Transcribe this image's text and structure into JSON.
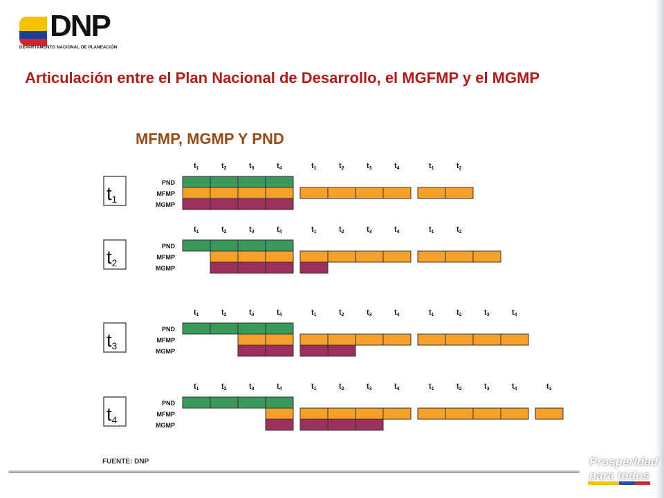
{
  "header": {
    "logo_text": "DNP",
    "logo_subtitle": "DEPARTAMENTO NACIONAL DE PLANEACIÓN",
    "flag_colors": [
      "#f5c400",
      "#1d3f96",
      "#d2242a"
    ]
  },
  "title": "Articulación entre el Plan Nacional de Desarrollo, el MGFMP y el MGMP",
  "subtitle": "MFMP, MGMP Y PND",
  "colors": {
    "PND": "#3a9a5b",
    "MFMP": "#f5a02a",
    "MGMP": "#9b2f5e",
    "title": "#b31b1b",
    "subtitle": "#9a4a14"
  },
  "row_labels": [
    "PND",
    "MFMP",
    "MGMP"
  ],
  "panels": [
    {
      "label": "t1",
      "label_base": "t",
      "label_sub": "1",
      "ticks": [
        "t1",
        "t2",
        "t3",
        "t4",
        "t1",
        "t2",
        "t3",
        "t4",
        "t1",
        "t2"
      ],
      "rows": {
        "PND": [
          0,
          1,
          2,
          3
        ],
        "MFMP": [
          0,
          1,
          2,
          3,
          4,
          5,
          6,
          7,
          8,
          9
        ],
        "MGMP": [
          0,
          1,
          2,
          3
        ]
      }
    },
    {
      "label": "t2",
      "label_base": "t",
      "label_sub": "2",
      "ticks": [
        "t1",
        "t2",
        "t3",
        "t4",
        "t1",
        "t2",
        "t3",
        "t4",
        "t1",
        "t2"
      ],
      "rows": {
        "PND": [
          0,
          1,
          2,
          3
        ],
        "MFMP": [
          1,
          2,
          3,
          4,
          5,
          6,
          7,
          8,
          9,
          10
        ],
        "MGMP": [
          1,
          2,
          3,
          4
        ]
      }
    },
    {
      "label": "t3",
      "label_base": "t",
      "label_sub": "3",
      "ticks": [
        "t1",
        "t2",
        "t3",
        "t4",
        "t1",
        "t2",
        "t3",
        "t4",
        "t1",
        "t2",
        "t3",
        "t4"
      ],
      "rows": {
        "PND": [
          0,
          1,
          2,
          3
        ],
        "MFMP": [
          2,
          3,
          4,
          5,
          6,
          7,
          8,
          9,
          10,
          11
        ],
        "MGMP": [
          2,
          3,
          4,
          5
        ]
      }
    },
    {
      "label": "t4",
      "label_base": "t",
      "label_sub": "4",
      "ticks": [
        "t1",
        "t2",
        "t3",
        "t4",
        "t1",
        "t2",
        "t3",
        "t4",
        "t1",
        "t2",
        "t3",
        "t4",
        "t1"
      ],
      "rows": {
        "PND": [
          0,
          1,
          2,
          3
        ],
        "MFMP": [
          3,
          4,
          5,
          6,
          7,
          8,
          9,
          10,
          11,
          12
        ],
        "MGMP": [
          3,
          4,
          5,
          6
        ]
      }
    }
  ],
  "source": "FUENTE: DNP",
  "brand": {
    "line1": "Prosperidad",
    "line2": "para todos"
  }
}
